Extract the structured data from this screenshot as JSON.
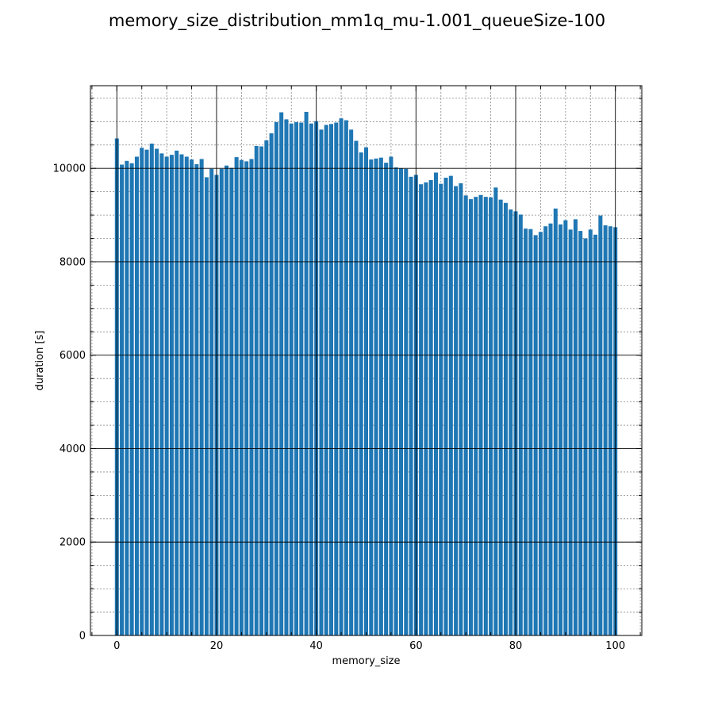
{
  "chart_data": {
    "type": "bar",
    "title": "memory_size_distribution_mm1q_mu-1.001_queueSize-100",
    "xlabel": "memory_size",
    "ylabel": "duration [s]",
    "xlim": [
      -5.3,
      105.3
    ],
    "ylim": [
      0,
      11770
    ],
    "x_ticks": [
      0,
      20,
      40,
      60,
      80,
      100
    ],
    "y_ticks": [
      0,
      2000,
      4000,
      6000,
      8000,
      10000
    ],
    "grid": true,
    "bar_color": "#1f77b4",
    "x": [
      0,
      1,
      2,
      3,
      4,
      5,
      6,
      7,
      8,
      9,
      10,
      11,
      12,
      13,
      14,
      15,
      16,
      17,
      18,
      19,
      20,
      21,
      22,
      23,
      24,
      25,
      26,
      27,
      28,
      29,
      30,
      31,
      32,
      33,
      34,
      35,
      36,
      37,
      38,
      39,
      40,
      41,
      42,
      43,
      44,
      45,
      46,
      47,
      48,
      49,
      50,
      51,
      52,
      53,
      54,
      55,
      56,
      57,
      58,
      59,
      60,
      61,
      62,
      63,
      64,
      65,
      66,
      67,
      68,
      69,
      70,
      71,
      72,
      73,
      74,
      75,
      76,
      77,
      78,
      79,
      80,
      81,
      82,
      83,
      84,
      85,
      86,
      87,
      88,
      89,
      90,
      91,
      92,
      93,
      94,
      95,
      96,
      97,
      98,
      99,
      100
    ],
    "values": [
      10640,
      10080,
      10160,
      10110,
      10250,
      10440,
      10400,
      10530,
      10420,
      10320,
      10250,
      10290,
      10380,
      10300,
      10250,
      10190,
      10090,
      10200,
      9810,
      9990,
      9860,
      9990,
      10060,
      10010,
      10240,
      10180,
      10150,
      10200,
      10480,
      10470,
      10600,
      10750,
      10990,
      11200,
      11050,
      10960,
      10990,
      10980,
      11210,
      10960,
      11010,
      10830,
      10930,
      10950,
      10980,
      11070,
      11030,
      10830,
      10590,
      10340,
      10450,
      10190,
      10210,
      10230,
      10120,
      10250,
      10020,
      10000,
      9990,
      9820,
      9860,
      9660,
      9700,
      9750,
      9910,
      9670,
      9800,
      9840,
      9620,
      9680,
      9420,
      9340,
      9390,
      9430,
      9390,
      9380,
      9590,
      9330,
      9260,
      9120,
      9080,
      9010,
      8710,
      8700,
      8570,
      8640,
      8760,
      8820,
      9140,
      8800,
      8890,
      8690,
      8910,
      8660,
      8500,
      8690,
      8580,
      8990,
      8780,
      8760,
      8740
    ]
  }
}
